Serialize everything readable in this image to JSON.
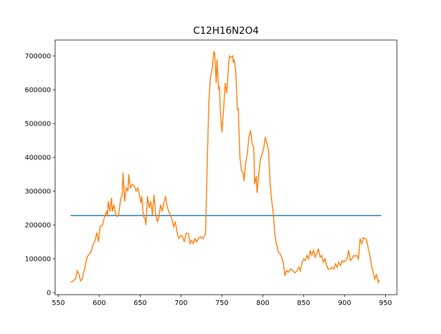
{
  "chart_data": {
    "type": "line",
    "title": "C12H16N2O4",
    "xlim": [
      546,
      964
    ],
    "xticks": [
      550,
      600,
      650,
      700,
      750,
      800,
      850,
      900,
      950
    ],
    "ylim": [
      -6000,
      747000
    ],
    "yticks": [
      0,
      100000,
      200000,
      300000,
      400000,
      500000,
      600000,
      700000
    ],
    "grid": false,
    "series": [
      {
        "color": "#1f77b4",
        "x": [
          565,
          945
        ],
        "values": [
          228000,
          228000
        ]
      },
      {
        "color": "#ff7f0e",
        "x": [
          565,
          568,
          571,
          573,
          575,
          577,
          579,
          582,
          585,
          588,
          590,
          592,
          595,
          597,
          599,
          601,
          604,
          607,
          609,
          610,
          611,
          613,
          615,
          616,
          618,
          620,
          622,
          624,
          626,
          628,
          629,
          631,
          633,
          635,
          636,
          638,
          640,
          643,
          645,
          647,
          649,
          651,
          652,
          654,
          656,
          657,
          659,
          661,
          663,
          665,
          667,
          669,
          671,
          673,
          675,
          677,
          679,
          681,
          683,
          685,
          687,
          689,
          691,
          693,
          695,
          697,
          700,
          702,
          704,
          706,
          709,
          711,
          713,
          715,
          717,
          719,
          721,
          724,
          727,
          730,
          732,
          734,
          736,
          738,
          740,
          741,
          743,
          744,
          746,
          747,
          748,
          750,
          752,
          754,
          756,
          758,
          759,
          761,
          763,
          764,
          765,
          767,
          769,
          770,
          772,
          774,
          776,
          777,
          779,
          781,
          783,
          785,
          787,
          789,
          790,
          792,
          793,
          795,
          797,
          799,
          801,
          803,
          805,
          807,
          809,
          811,
          813,
          815,
          817,
          819,
          821,
          823,
          825,
          827,
          829,
          831,
          834,
          837,
          839,
          842,
          844,
          846,
          848,
          850,
          852,
          854,
          856,
          858,
          860,
          862,
          864,
          866,
          868,
          870,
          872,
          874,
          876,
          878,
          880,
          883,
          885,
          887,
          889,
          891,
          893,
          895,
          897,
          899,
          901,
          903,
          905,
          907,
          909,
          911,
          913,
          915,
          917,
          919,
          921,
          923,
          925,
          927,
          929,
          931,
          933,
          935,
          937,
          939,
          941,
          943
        ],
        "values": [
          30000,
          35000,
          40000,
          65000,
          55000,
          35000,
          40000,
          70000,
          105000,
          115000,
          120000,
          140000,
          155000,
          178000,
          150000,
          195000,
          200000,
          230000,
          240000,
          225000,
          270000,
          240000,
          280000,
          240000,
          260000,
          230000,
          225000,
          235000,
          275000,
          290000,
          355000,
          270000,
          310000,
          300000,
          350000,
          310000,
          320000,
          315000,
          300000,
          310000,
          290000,
          265000,
          285000,
          225000,
          220000,
          200000,
          285000,
          250000,
          270000,
          230000,
          290000,
          230000,
          210000,
          225000,
          260000,
          240000,
          265000,
          285000,
          255000,
          240000,
          230000,
          215000,
          195000,
          210000,
          180000,
          160000,
          170000,
          165000,
          150000,
          175000,
          175000,
          145000,
          155000,
          145000,
          160000,
          150000,
          160000,
          165000,
          160000,
          175000,
          380000,
          560000,
          640000,
          660000,
          712000,
          710000,
          620000,
          690000,
          600000,
          610000,
          540000,
          475000,
          540000,
          620000,
          590000,
          670000,
          700000,
          695000,
          700000,
          680000,
          690000,
          650000,
          540000,
          545000,
          400000,
          360000,
          355000,
          330000,
          380000,
          410000,
          460000,
          480000,
          440000,
          430000,
          320000,
          345000,
          295000,
          350000,
          395000,
          410000,
          425000,
          460000,
          440000,
          420000,
          320000,
          270000,
          230000,
          165000,
          140000,
          120000,
          115000,
          105000,
          90000,
          50000,
          65000,
          60000,
          70000,
          65000,
          58000,
          65000,
          75000,
          65000,
          90000,
          100000,
          95000,
          110000,
          100000,
          125000,
          110000,
          125000,
          105000,
          115000,
          130000,
          105000,
          110000,
          90000,
          100000,
          80000,
          70000,
          70000,
          75000,
          70000,
          85000,
          75000,
          90000,
          80000,
          95000,
          90000,
          95000,
          100000,
          125000,
          95000,
          100000,
          110000,
          108000,
          110000,
          100000,
          160000,
          145000,
          162000,
          160000,
          155000,
          130000,
          110000,
          80000,
          60000,
          40000,
          55000,
          30000,
          38000
        ]
      }
    ]
  }
}
